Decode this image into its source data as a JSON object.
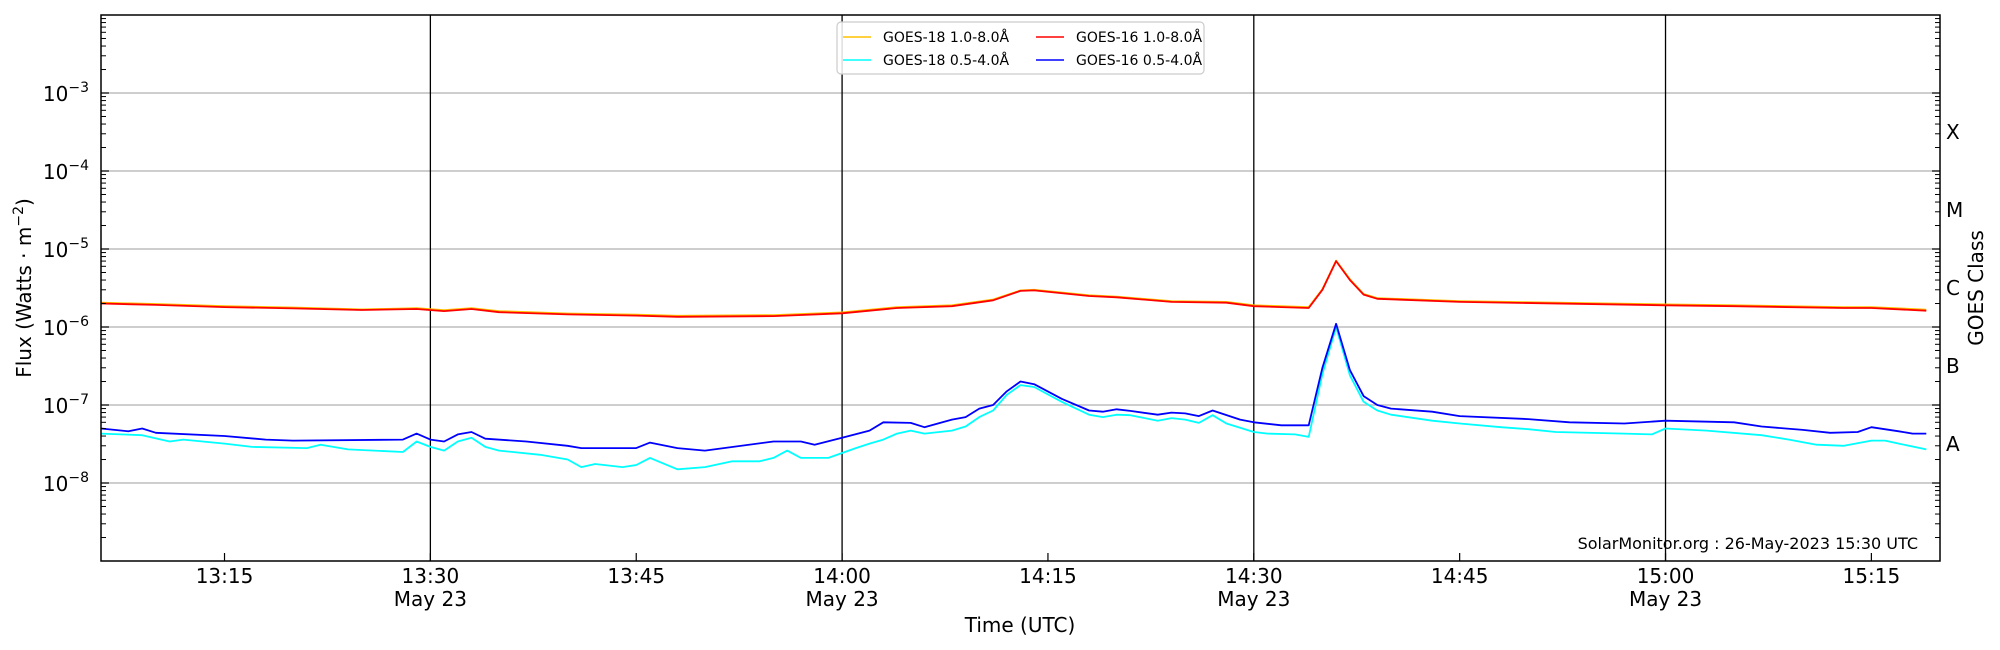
{
  "chart_data": {
    "type": "line",
    "title": "",
    "xlabel": "Time (UTC)",
    "ylabel": "Flux (Watts · m",
    "ylabel_exp": "−2",
    "ylabel_close": ")",
    "right_label": "GOES Class",
    "y_scale": "log",
    "ylim": [
      1e-09,
      0.01
    ],
    "xlim": [
      "13:06",
      "15:20"
    ],
    "grid": "horizontal at each decade",
    "legend_placement": "top-center",
    "annotation": "SolarMonitor.org : 26-May-2023 15:30 UTC",
    "x_ticks": [
      {
        "time": "13:15",
        "label": "13:15",
        "date": ""
      },
      {
        "time": "13:30",
        "label": "13:30",
        "date": "May 23"
      },
      {
        "time": "13:45",
        "label": "13:45",
        "date": ""
      },
      {
        "time": "14:00",
        "label": "14:00",
        "date": "May 23"
      },
      {
        "time": "14:15",
        "label": "14:15",
        "date": ""
      },
      {
        "time": "14:30",
        "label": "14:30",
        "date": "May 23"
      },
      {
        "time": "14:45",
        "label": "14:45",
        "date": ""
      },
      {
        "time": "15:00",
        "label": "15:00",
        "date": "May 23"
      },
      {
        "time": "15:15",
        "label": "15:15",
        "date": ""
      }
    ],
    "vertical_lines": [
      "13:30",
      "14:00",
      "14:30",
      "15:00"
    ],
    "y_ticks": [
      {
        "value": 0.001,
        "base": "10",
        "exp": "−3"
      },
      {
        "value": 0.0001,
        "base": "10",
        "exp": "−4"
      },
      {
        "value": 1e-05,
        "base": "10",
        "exp": "−5"
      },
      {
        "value": 1e-06,
        "base": "10",
        "exp": "−6"
      },
      {
        "value": 1e-07,
        "base": "10",
        "exp": "−7"
      },
      {
        "value": 1e-08,
        "base": "10",
        "exp": "−8"
      }
    ],
    "goes_classes": [
      {
        "label": "X",
        "lo": 0.0001,
        "hi": 0.001
      },
      {
        "label": "M",
        "lo": 1e-05,
        "hi": 0.0001
      },
      {
        "label": "C",
        "lo": 1e-06,
        "hi": 1e-05
      },
      {
        "label": "B",
        "lo": 1e-07,
        "hi": 1e-06
      },
      {
        "label": "A",
        "lo": 1e-08,
        "hi": 1e-07
      }
    ],
    "series": [
      {
        "name": "GOES-18 1.0-8.0Å",
        "color": "#ffc200",
        "points": [
          [
            "13:06",
            2.05e-06
          ],
          [
            "13:10",
            1.97e-06
          ],
          [
            "13:15",
            1.85e-06
          ],
          [
            "13:20",
            1.78e-06
          ],
          [
            "13:25",
            1.68e-06
          ],
          [
            "13:29",
            1.74e-06
          ],
          [
            "13:31",
            1.64e-06
          ],
          [
            "13:33",
            1.74e-06
          ],
          [
            "13:35",
            1.6e-06
          ],
          [
            "13:40",
            1.49e-06
          ],
          [
            "13:45",
            1.44e-06
          ],
          [
            "13:48",
            1.39e-06
          ],
          [
            "13:55",
            1.42e-06
          ],
          [
            "14:00",
            1.54e-06
          ],
          [
            "14:04",
            1.8e-06
          ],
          [
            "14:08",
            1.9e-06
          ],
          [
            "14:11",
            2.25e-06
          ],
          [
            "14:13",
            2.95e-06
          ],
          [
            "14:14",
            3e-06
          ],
          [
            "14:18",
            2.55e-06
          ],
          [
            "14:20",
            2.45e-06
          ],
          [
            "14:24",
            2.15e-06
          ],
          [
            "14:28",
            2.1e-06
          ],
          [
            "14:30",
            1.9e-06
          ],
          [
            "14:34",
            1.8e-06
          ],
          [
            "14:35",
            3.05e-06
          ],
          [
            "14:36",
            7.1e-06
          ],
          [
            "14:37",
            4.1e-06
          ],
          [
            "14:38",
            2.65e-06
          ],
          [
            "14:39",
            2.35e-06
          ],
          [
            "14:45",
            2.15e-06
          ],
          [
            "15:00",
            1.95e-06
          ],
          [
            "15:05",
            1.9e-06
          ],
          [
            "15:13",
            1.8e-06
          ],
          [
            "15:15",
            1.8e-06
          ],
          [
            "15:19",
            1.67e-06
          ]
        ]
      },
      {
        "name": "GOES-18 0.5-4.0Å",
        "color": "#00ffff",
        "points": [
          [
            "13:06",
            4.3e-08
          ],
          [
            "13:09",
            4.1e-08
          ],
          [
            "13:11",
            3.4e-08
          ],
          [
            "13:12",
            3.6e-08
          ],
          [
            "13:15",
            3.2e-08
          ],
          [
            "13:17",
            2.9e-08
          ],
          [
            "13:21",
            2.8e-08
          ],
          [
            "13:22",
            3.1e-08
          ],
          [
            "13:24",
            2.7e-08
          ],
          [
            "13:28",
            2.5e-08
          ],
          [
            "13:29",
            3.4e-08
          ],
          [
            "13:30",
            2.9e-08
          ],
          [
            "13:31",
            2.6e-08
          ],
          [
            "13:32",
            3.4e-08
          ],
          [
            "13:33",
            3.8e-08
          ],
          [
            "13:34",
            2.9e-08
          ],
          [
            "13:35",
            2.6e-08
          ],
          [
            "13:38",
            2.3e-08
          ],
          [
            "13:40",
            2e-08
          ],
          [
            "13:41",
            1.6e-08
          ],
          [
            "13:42",
            1.75e-08
          ],
          [
            "13:44",
            1.6e-08
          ],
          [
            "13:45",
            1.7e-08
          ],
          [
            "13:46",
            2.1e-08
          ],
          [
            "13:48",
            1.5e-08
          ],
          [
            "13:50",
            1.6e-08
          ],
          [
            "13:52",
            1.9e-08
          ],
          [
            "13:54",
            1.9e-08
          ],
          [
            "13:55",
            2.1e-08
          ],
          [
            "13:56",
            2.6e-08
          ],
          [
            "13:57",
            2.1e-08
          ],
          [
            "13:59",
            2.1e-08
          ],
          [
            "14:01",
            2.8e-08
          ],
          [
            "14:02",
            3.2e-08
          ],
          [
            "14:03",
            3.6e-08
          ],
          [
            "14:04",
            4.3e-08
          ],
          [
            "14:05",
            4.7e-08
          ],
          [
            "14:06",
            4.3e-08
          ],
          [
            "14:08",
            4.7e-08
          ],
          [
            "14:09",
            5.3e-08
          ],
          [
            "14:10",
            7e-08
          ],
          [
            "14:11",
            8.5e-08
          ],
          [
            "14:12",
            1.35e-07
          ],
          [
            "14:13",
            1.8e-07
          ],
          [
            "14:14",
            1.7e-07
          ],
          [
            "14:16",
            1.1e-07
          ],
          [
            "14:18",
            7.5e-08
          ],
          [
            "14:19",
            7e-08
          ],
          [
            "14:20",
            7.5e-08
          ],
          [
            "14:21",
            7.4e-08
          ],
          [
            "14:23",
            6.3e-08
          ],
          [
            "14:24",
            6.8e-08
          ],
          [
            "14:25",
            6.5e-08
          ],
          [
            "14:26",
            5.9e-08
          ],
          [
            "14:27",
            7.4e-08
          ],
          [
            "14:28",
            5.8e-08
          ],
          [
            "14:30",
            4.5e-08
          ],
          [
            "14:31",
            4.3e-08
          ],
          [
            "14:33",
            4.2e-08
          ],
          [
            "14:34",
            3.9e-08
          ],
          [
            "14:35",
            2.5e-07
          ],
          [
            "14:36",
            1e-06
          ],
          [
            "14:37",
            2.4e-07
          ],
          [
            "14:38",
            1.1e-07
          ],
          [
            "14:39",
            8.5e-08
          ],
          [
            "14:40",
            7.5e-08
          ],
          [
            "14:43",
            6.3e-08
          ],
          [
            "14:45",
            5.8e-08
          ],
          [
            "14:48",
            5.2e-08
          ],
          [
            "14:50",
            4.9e-08
          ],
          [
            "14:52",
            4.5e-08
          ],
          [
            "14:57",
            4.3e-08
          ],
          [
            "14:59",
            4.2e-08
          ],
          [
            "15:00",
            5e-08
          ],
          [
            "15:03",
            4.7e-08
          ],
          [
            "15:07",
            4.1e-08
          ],
          [
            "15:09",
            3.6e-08
          ],
          [
            "15:11",
            3.1e-08
          ],
          [
            "15:13",
            3e-08
          ],
          [
            "15:15",
            3.5e-08
          ],
          [
            "15:16",
            3.5e-08
          ],
          [
            "15:17",
            3.2e-08
          ],
          [
            "15:19",
            2.7e-08
          ]
        ]
      },
      {
        "name": "GOES-16 1.0-8.0Å",
        "color": "#ff0000",
        "points": [
          [
            "13:06",
            2e-06
          ],
          [
            "13:10",
            1.92e-06
          ],
          [
            "13:15",
            1.8e-06
          ],
          [
            "13:20",
            1.73e-06
          ],
          [
            "13:25",
            1.65e-06
          ],
          [
            "13:29",
            1.7e-06
          ],
          [
            "13:31",
            1.6e-06
          ],
          [
            "13:33",
            1.7e-06
          ],
          [
            "13:35",
            1.55e-06
          ],
          [
            "13:40",
            1.45e-06
          ],
          [
            "13:45",
            1.4e-06
          ],
          [
            "13:48",
            1.35e-06
          ],
          [
            "13:55",
            1.38e-06
          ],
          [
            "14:00",
            1.5e-06
          ],
          [
            "14:04",
            1.75e-06
          ],
          [
            "14:08",
            1.85e-06
          ],
          [
            "14:11",
            2.2e-06
          ],
          [
            "14:13",
            2.9e-06
          ],
          [
            "14:14",
            2.95e-06
          ],
          [
            "14:18",
            2.5e-06
          ],
          [
            "14:20",
            2.4e-06
          ],
          [
            "14:24",
            2.1e-06
          ],
          [
            "14:28",
            2.05e-06
          ],
          [
            "14:30",
            1.85e-06
          ],
          [
            "14:34",
            1.75e-06
          ],
          [
            "14:35",
            3e-06
          ],
          [
            "14:36",
            7e-06
          ],
          [
            "14:37",
            4e-06
          ],
          [
            "14:38",
            2.6e-06
          ],
          [
            "14:39",
            2.3e-06
          ],
          [
            "14:45",
            2.1e-06
          ],
          [
            "15:00",
            1.9e-06
          ],
          [
            "15:05",
            1.85e-06
          ],
          [
            "15:13",
            1.75e-06
          ],
          [
            "15:15",
            1.75e-06
          ],
          [
            "15:19",
            1.62e-06
          ]
        ]
      },
      {
        "name": "GOES-16 0.5-4.0Å",
        "color": "#0000ff",
        "points": [
          [
            "13:06",
            5e-08
          ],
          [
            "13:08",
            4.6e-08
          ],
          [
            "13:09",
            5e-08
          ],
          [
            "13:10",
            4.4e-08
          ],
          [
            "13:15",
            4e-08
          ],
          [
            "13:18",
            3.6e-08
          ],
          [
            "13:20",
            3.5e-08
          ],
          [
            "13:28",
            3.6e-08
          ],
          [
            "13:29",
            4.3e-08
          ],
          [
            "13:30",
            3.6e-08
          ],
          [
            "13:31",
            3.4e-08
          ],
          [
            "13:32",
            4.2e-08
          ],
          [
            "13:33",
            4.5e-08
          ],
          [
            "13:34",
            3.7e-08
          ],
          [
            "13:37",
            3.4e-08
          ],
          [
            "13:40",
            3e-08
          ],
          [
            "13:41",
            2.8e-08
          ],
          [
            "13:45",
            2.8e-08
          ],
          [
            "13:46",
            3.3e-08
          ],
          [
            "13:48",
            2.8e-08
          ],
          [
            "13:50",
            2.6e-08
          ],
          [
            "13:55",
            3.4e-08
          ],
          [
            "13:57",
            3.4e-08
          ],
          [
            "13:58",
            3.1e-08
          ],
          [
            "14:00",
            3.8e-08
          ],
          [
            "14:02",
            4.7e-08
          ],
          [
            "14:03",
            6e-08
          ],
          [
            "14:05",
            5.9e-08
          ],
          [
            "14:06",
            5.2e-08
          ],
          [
            "14:08",
            6.5e-08
          ],
          [
            "14:09",
            7e-08
          ],
          [
            "14:10",
            9e-08
          ],
          [
            "14:11",
            1e-07
          ],
          [
            "14:12",
            1.5e-07
          ],
          [
            "14:13",
            2e-07
          ],
          [
            "14:14",
            1.85e-07
          ],
          [
            "14:16",
            1.2e-07
          ],
          [
            "14:18",
            8.5e-08
          ],
          [
            "14:19",
            8.2e-08
          ],
          [
            "14:20",
            8.8e-08
          ],
          [
            "14:21",
            8.4e-08
          ],
          [
            "14:23",
            7.5e-08
          ],
          [
            "14:24",
            8e-08
          ],
          [
            "14:25",
            7.8e-08
          ],
          [
            "14:26",
            7.2e-08
          ],
          [
            "14:27",
            8.5e-08
          ],
          [
            "14:29",
            6.5e-08
          ],
          [
            "14:30",
            6e-08
          ],
          [
            "14:32",
            5.5e-08
          ],
          [
            "14:34",
            5.5e-08
          ],
          [
            "14:35",
            3e-07
          ],
          [
            "14:36",
            1.1e-06
          ],
          [
            "14:37",
            2.8e-07
          ],
          [
            "14:38",
            1.3e-07
          ],
          [
            "14:39",
            1e-07
          ],
          [
            "14:40",
            9e-08
          ],
          [
            "14:43",
            8.2e-08
          ],
          [
            "14:45",
            7.2e-08
          ],
          [
            "14:50",
            6.6e-08
          ],
          [
            "14:53",
            6e-08
          ],
          [
            "14:57",
            5.8e-08
          ],
          [
            "15:00",
            6.3e-08
          ],
          [
            "15:05",
            6e-08
          ],
          [
            "15:07",
            5.3e-08
          ],
          [
            "15:10",
            4.8e-08
          ],
          [
            "15:12",
            4.4e-08
          ],
          [
            "15:14",
            4.5e-08
          ],
          [
            "15:15",
            5.2e-08
          ],
          [
            "15:17",
            4.6e-08
          ],
          [
            "15:18",
            4.3e-08
          ],
          [
            "15:19",
            4.3e-08
          ]
        ]
      }
    ],
    "legend_order": [
      0,
      1,
      2,
      3
    ]
  }
}
